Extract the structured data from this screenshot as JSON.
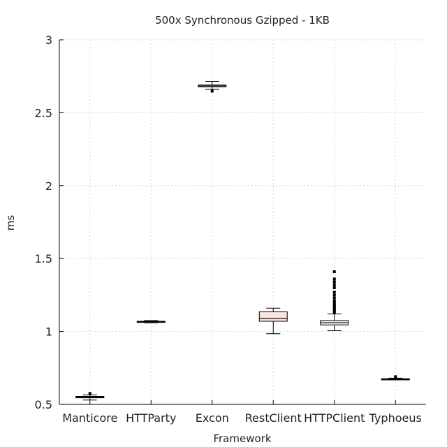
{
  "chart_data": {
    "type": "box",
    "title": "500x Synchronous Gzipped - 1KB",
    "xlabel": "Framework",
    "ylabel": "ms",
    "ylim": [
      0.5,
      3
    ],
    "yticks": [
      "0.5",
      "1",
      "1.5",
      "2",
      "2.5",
      "3"
    ],
    "grid": true,
    "categories": [
      "Manticore",
      "HTTParty",
      "Excon",
      "RestClient",
      "HTTPClient",
      "Typhoeus"
    ],
    "boxes": [
      {
        "category": "Manticore",
        "whisker_low": 0.53,
        "q1": 0.545,
        "median": 0.55,
        "q3": 0.555,
        "whisker_high": 0.565,
        "outliers": [
          0.575
        ],
        "fill": "#ffffff"
      },
      {
        "category": "HTTParty",
        "whisker_low": 1.06,
        "q1": 1.062,
        "median": 1.066,
        "q3": 1.07,
        "whisker_high": 1.075,
        "outliers": [],
        "fill": "#ffffff"
      },
      {
        "category": "Excon",
        "whisker_low": 2.66,
        "q1": 2.677,
        "median": 2.684,
        "q3": 2.69,
        "whisker_high": 2.715,
        "outliers": [
          2.648
        ],
        "fill": "#ffffff"
      },
      {
        "category": "RestClient",
        "whisker_low": 0.985,
        "q1": 1.07,
        "median": 1.09,
        "q3": 1.135,
        "whisker_high": 1.16,
        "outliers": [],
        "fill": "#fbe3df"
      },
      {
        "category": "HTTPClient",
        "whisker_low": 1.005,
        "q1": 1.045,
        "median": 1.06,
        "q3": 1.075,
        "whisker_high": 1.12,
        "outliers": [
          1.41,
          1.36,
          1.34,
          1.32,
          1.3,
          1.27,
          1.25,
          1.23,
          1.21,
          1.2,
          1.19,
          1.18,
          1.17,
          1.16,
          1.15,
          1.14,
          1.13
        ],
        "fill": "#f4f7fa"
      },
      {
        "category": "Typhoeus",
        "whisker_low": 0.668,
        "q1": 0.668,
        "median": 0.672,
        "q3": 0.676,
        "whisker_high": 0.68,
        "outliers": [
          0.69
        ],
        "fill": "#ffffff"
      }
    ]
  }
}
